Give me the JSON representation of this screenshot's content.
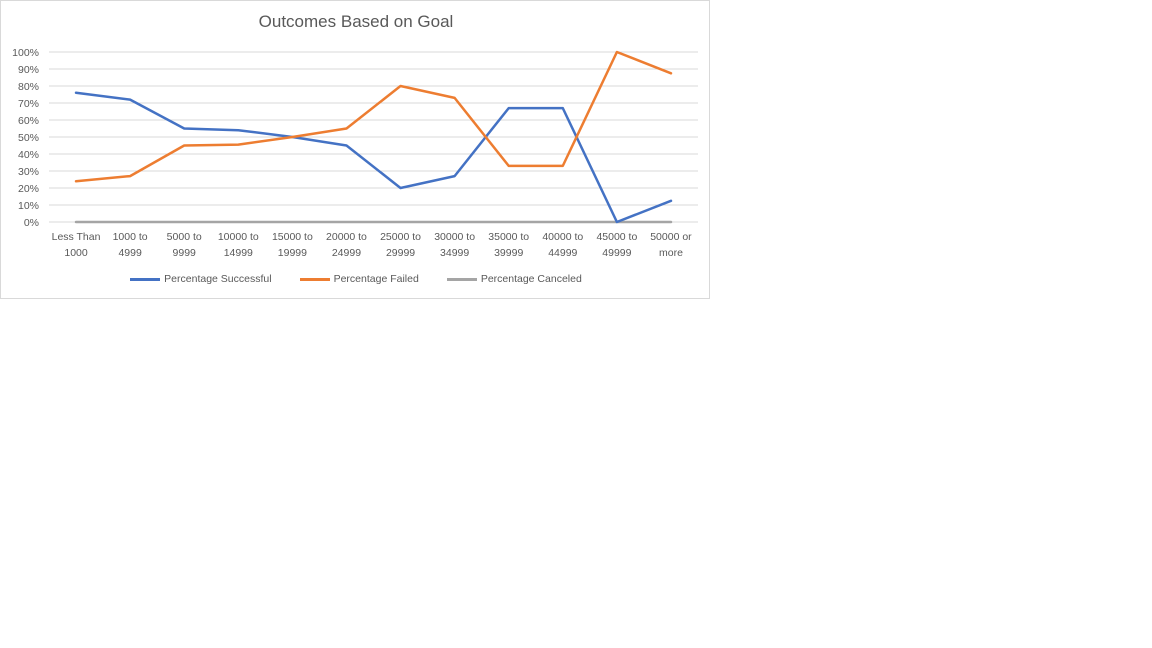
{
  "chart_data": {
    "type": "line",
    "title": "Outcomes Based on Goal",
    "categories": [
      [
        "Less Than",
        "1000"
      ],
      [
        "1000 to",
        "4999"
      ],
      [
        "5000 to",
        "9999"
      ],
      [
        "10000 to",
        "14999"
      ],
      [
        "15000 to",
        "19999"
      ],
      [
        "20000 to",
        "24999"
      ],
      [
        "25000 to",
        "29999"
      ],
      [
        "30000 to",
        "34999"
      ],
      [
        "35000 to",
        "39999"
      ],
      [
        "40000 to",
        "44999"
      ],
      [
        "45000 to",
        "49999"
      ],
      [
        "50000 or",
        "more"
      ]
    ],
    "yticks": [
      "0%",
      "10%",
      "20%",
      "30%",
      "40%",
      "50%",
      "60%",
      "70%",
      "80%",
      "90%",
      "100%"
    ],
    "ylim": [
      0,
      100
    ],
    "grid": true,
    "legend_position": "bottom",
    "series": [
      {
        "name": "Percentage Successful",
        "color": "#4472c4",
        "values": [
          76,
          72,
          55,
          54,
          50,
          45,
          20,
          27,
          67,
          67,
          0,
          12.5
        ]
      },
      {
        "name": "Percentage Failed",
        "color": "#ed7d31",
        "values": [
          24,
          27,
          45,
          45.5,
          50,
          55,
          80,
          73,
          33,
          33,
          100,
          87.5
        ]
      },
      {
        "name": "Percentage Canceled",
        "color": "#a5a5a5",
        "values": [
          0,
          0,
          0,
          0,
          0,
          0,
          0,
          0,
          0,
          0,
          0,
          0
        ]
      }
    ]
  }
}
